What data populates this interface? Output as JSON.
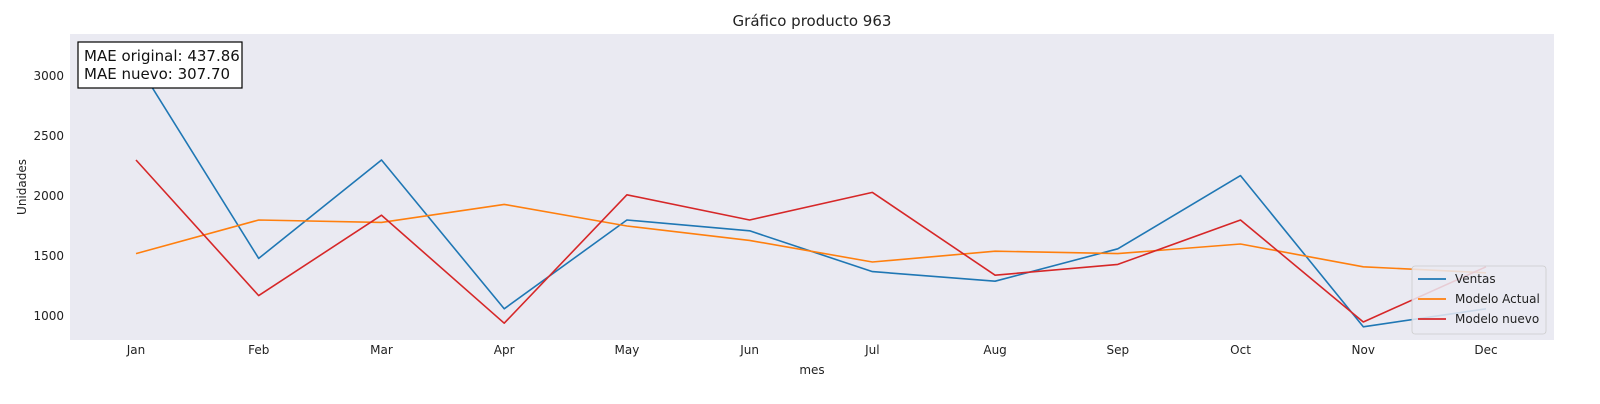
{
  "chart_data": {
    "type": "line",
    "title": "Gráfico producto 963",
    "xlabel": "mes",
    "ylabel": "Unidades",
    "categories": [
      "Jan",
      "Feb",
      "Mar",
      "Apr",
      "May",
      "Jun",
      "Jul",
      "Aug",
      "Sep",
      "Oct",
      "Nov",
      "Dec"
    ],
    "ylim": [
      800,
      3350
    ],
    "yticks": [
      1000,
      1500,
      2000,
      2500,
      3000
    ],
    "grid": false,
    "background": "#eaeaf2",
    "legend_position": "lower-right",
    "series": [
      {
        "name": "Ventas",
        "color": "#1f77b4",
        "values": [
          3120,
          1480,
          2300,
          1060,
          1800,
          1710,
          1370,
          1290,
          1560,
          2170,
          910,
          1060
        ]
      },
      {
        "name": "Modelo Actual",
        "color": "#ff7f0e",
        "values": [
          1520,
          1800,
          1780,
          1930,
          1750,
          1630,
          1450,
          1540,
          1520,
          1600,
          1410,
          1360
        ]
      },
      {
        "name": "Modelo nuevo",
        "color": "#d62728",
        "values": [
          2300,
          1170,
          1840,
          940,
          2010,
          1800,
          2030,
          1340,
          1430,
          1800,
          950,
          1410
        ]
      }
    ],
    "annotation": {
      "lines": [
        "MAE original: 437.86",
        "MAE nuevo: 307.70"
      ]
    }
  }
}
